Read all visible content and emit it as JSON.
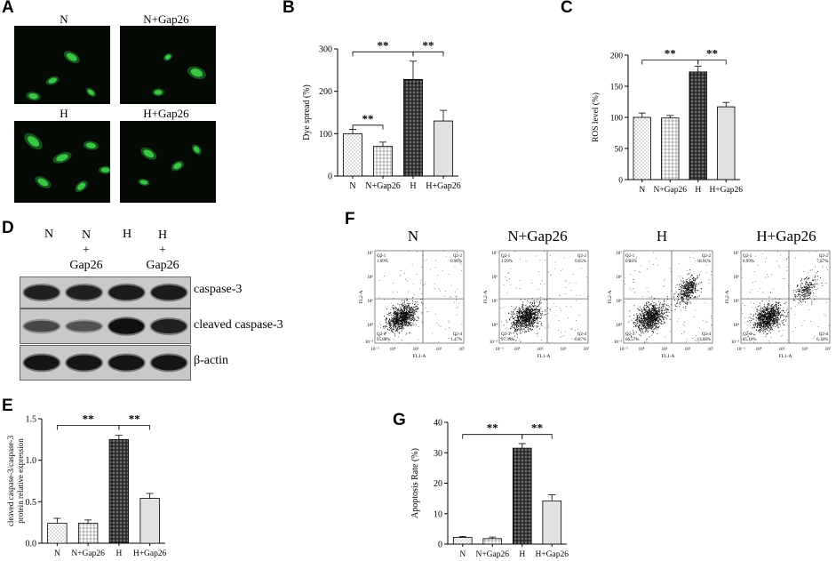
{
  "panels": {
    "A": "A",
    "B": "B",
    "C": "C",
    "D": "D",
    "E": "E",
    "F": "F",
    "G": "G"
  },
  "panel_a": {
    "images": [
      {
        "label": "N",
        "cells": [
          [
            60,
            40,
            18,
            10,
            30
          ],
          [
            40,
            70,
            14,
            8,
            -20
          ],
          [
            80,
            85,
            12,
            7,
            40
          ],
          [
            20,
            90,
            15,
            9,
            10
          ]
        ]
      },
      {
        "label": "N+Gap26",
        "cells": [
          [
            80,
            60,
            20,
            12,
            20
          ],
          [
            50,
            40,
            10,
            7,
            -30
          ],
          [
            40,
            85,
            12,
            8,
            0
          ]
        ]
      },
      {
        "label": "H",
        "cells": [
          [
            20,
            25,
            22,
            12,
            40
          ],
          [
            50,
            45,
            20,
            10,
            -20
          ],
          [
            80,
            30,
            16,
            9,
            10
          ],
          [
            30,
            75,
            18,
            10,
            30
          ],
          [
            70,
            80,
            15,
            9,
            -40
          ],
          [
            95,
            60,
            14,
            8,
            0
          ]
        ]
      },
      {
        "label": "H+Gap26",
        "cells": [
          [
            30,
            40,
            18,
            10,
            30
          ],
          [
            60,
            55,
            14,
            9,
            -30
          ],
          [
            25,
            75,
            12,
            7,
            10
          ],
          [
            80,
            35,
            12,
            8,
            50
          ]
        ]
      }
    ]
  },
  "chart_data": [
    {
      "id": "B",
      "type": "bar",
      "categories": [
        "N",
        "N+Gap26",
        "H",
        "H+Gap26"
      ],
      "values": [
        100,
        70,
        228,
        130
      ],
      "errors": [
        10,
        10,
        43,
        25
      ],
      "ylabel": "Dye spread (%)",
      "ylim": [
        0,
        300
      ],
      "yticks": [
        0,
        100,
        200,
        300
      ],
      "significance": [
        {
          "from": 0,
          "to": 1,
          "y": 120,
          "label": "**"
        },
        {
          "from": 0,
          "to": 2,
          "y": 293,
          "label": "**"
        },
        {
          "from": 2,
          "to": 3,
          "y": 293,
          "label": "**"
        }
      ]
    },
    {
      "id": "C",
      "type": "bar",
      "categories": [
        "N",
        "N+Gap26",
        "H",
        "H+Gap26"
      ],
      "values": [
        100,
        99,
        173,
        117
      ],
      "errors": [
        7,
        4,
        9,
        7
      ],
      "ylabel": "ROS level (%)",
      "ylim": [
        0,
        200
      ],
      "yticks": [
        0,
        50,
        100,
        150,
        200
      ],
      "significance": [
        {
          "from": 0,
          "to": 2,
          "y": 192,
          "label": "**"
        },
        {
          "from": 2,
          "to": 3,
          "y": 192,
          "label": "**"
        }
      ]
    },
    {
      "id": "E",
      "type": "bar",
      "categories": [
        "N",
        "N+Gap26",
        "H",
        "H+Gap26"
      ],
      "values": [
        0.24,
        0.24,
        1.25,
        0.54
      ],
      "errors": [
        0.06,
        0.04,
        0.05,
        0.06
      ],
      "ylabel": "cleaved caspase-3/caspase-3 protein relative expression",
      "ylabel_lines": [
        "cleaved caspase-3/caspase-3",
        "protein relative expression"
      ],
      "ylim": [
        0,
        1.5
      ],
      "yticks": [
        0,
        0.5,
        1.0,
        1.5
      ],
      "yticklabels": [
        "0.0",
        "0.5",
        "1.0",
        "1.5"
      ],
      "significance": [
        {
          "from": 0,
          "to": 2,
          "y": 1.42,
          "label": "**"
        },
        {
          "from": 2,
          "to": 3,
          "y": 1.42,
          "label": "**"
        }
      ]
    },
    {
      "id": "G",
      "type": "bar",
      "categories": [
        "N",
        "N+Gap26",
        "H",
        "H+Gap26"
      ],
      "values": [
        2.2,
        1.8,
        31.5,
        14.2
      ],
      "errors": [
        0.3,
        0.5,
        1.5,
        2.0
      ],
      "ylabel": "Apoptosis Rate (%)",
      "ylim": [
        0,
        40
      ],
      "yticks": [
        0,
        10,
        20,
        30,
        40
      ],
      "significance": [
        {
          "from": 0,
          "to": 2,
          "y": 36,
          "label": "**"
        },
        {
          "from": 2,
          "to": 3,
          "y": 36,
          "label": "**"
        }
      ]
    }
  ],
  "panel_d": {
    "lanes": [
      [
        "N"
      ],
      [
        "N",
        "+",
        "Gap26"
      ],
      [
        "H"
      ],
      [
        "H",
        "+",
        "Gap26"
      ]
    ],
    "bands": [
      {
        "label": "caspase-3",
        "intensity": [
          0.8,
          0.8,
          0.85,
          0.85
        ]
      },
      {
        "label": "cleaved caspase-3",
        "intensity": [
          0.45,
          0.35,
          0.95,
          0.8
        ]
      },
      {
        "label": "β-actin",
        "intensity": [
          0.9,
          0.9,
          0.9,
          0.9
        ]
      }
    ]
  },
  "panel_f": {
    "plots": [
      {
        "title": "N",
        "q1": "Q2-1",
        "q1v": "1.69%",
        "q2": "Q2-2",
        "q2v": "0.96%",
        "q3": "Q2-3",
        "q3v": "95.88%",
        "q4": "Q2-4",
        "q4v": "1.47%",
        "upper_cluster": false
      },
      {
        "title": "N+Gap26",
        "q1": "Q2-1",
        "q1v": "1.29%",
        "q2": "Q2-2",
        "q2v": "0.65%",
        "q3": "Q2-3",
        "q3v": "97.39%",
        "q4": "Q2-4",
        "q4v": "0.67%",
        "upper_cluster": false
      },
      {
        "title": "H",
        "q1": "Q2-1",
        "q1v": "0.84%",
        "q2": "Q2-2",
        "q2v": "18.91%",
        "q3": "Q2-3",
        "q3v": "66.57%",
        "q4": "Q2-4",
        "q4v": "13.68%",
        "upper_cluster": true
      },
      {
        "title": "H+Gap26",
        "q1": "Q2-1",
        "q1v": "0.99%",
        "q2": "Q2-2",
        "q2v": "7.67%",
        "q3": "Q2-3",
        "q3v": "85.16%",
        "q4": "Q2-4",
        "q4v": "6.18%",
        "upper_cluster": true
      }
    ],
    "xlabel": "FL1-A",
    "ylabel": "FL2-A",
    "xticks": [
      "10⁴",
      "10⁵",
      "10⁶",
      "10⁷"
    ],
    "yticks": [
      "10⁷",
      "10⁶",
      "10⁵",
      "10⁴"
    ],
    "corner_tick": "10⁻³",
    "corner_tick_y": "10⁻³"
  }
}
